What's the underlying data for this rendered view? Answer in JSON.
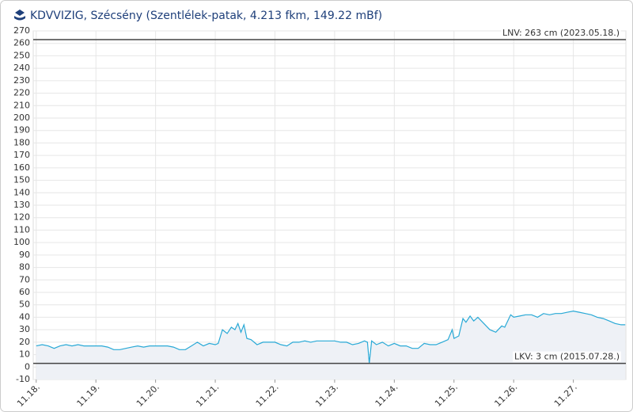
{
  "chart_data": {
    "type": "line",
    "title": "KDVVIZIG, Szécsény (Szentlélek-patak, 4.213 fkm, 149.22 mBf)",
    "x": [
      18.0,
      18.1,
      18.2,
      18.3,
      18.4,
      18.5,
      18.6,
      18.7,
      18.8,
      18.9,
      19.0,
      19.1,
      19.2,
      19.3,
      19.4,
      19.5,
      19.6,
      19.7,
      19.8,
      19.9,
      20.0,
      20.1,
      20.2,
      20.3,
      20.4,
      20.5,
      20.6,
      20.7,
      20.8,
      20.9,
      21.0,
      21.05,
      21.12,
      21.2,
      21.27,
      21.33,
      21.38,
      21.43,
      21.48,
      21.53,
      21.6,
      21.7,
      21.8,
      21.9,
      22.0,
      22.1,
      22.2,
      22.3,
      22.4,
      22.5,
      22.6,
      22.7,
      22.8,
      22.9,
      23.0,
      23.1,
      23.2,
      23.3,
      23.4,
      23.5,
      23.55,
      23.58,
      23.62,
      23.7,
      23.8,
      23.9,
      24.0,
      24.1,
      24.2,
      24.3,
      24.4,
      24.5,
      24.6,
      24.7,
      24.8,
      24.9,
      24.97,
      25.0,
      25.08,
      25.15,
      25.2,
      25.27,
      25.33,
      25.4,
      25.5,
      25.6,
      25.7,
      25.8,
      25.85,
      25.95,
      26.0,
      26.1,
      26.2,
      26.3,
      26.4,
      26.5,
      26.6,
      26.7,
      26.8,
      26.9,
      27.0,
      27.1,
      27.2,
      27.3,
      27.4,
      27.5,
      27.6,
      27.7,
      27.8,
      27.87
    ],
    "values": [
      17,
      18,
      17,
      15,
      17,
      18,
      17,
      18,
      17,
      17,
      17,
      17,
      16,
      14,
      14,
      15,
      16,
      17,
      16,
      17,
      17,
      17,
      17,
      16,
      14,
      14,
      17,
      20,
      17,
      19,
      18,
      19,
      30,
      27,
      32,
      30,
      35,
      28,
      34,
      23,
      22,
      18,
      20,
      20,
      20,
      18,
      17,
      20,
      20,
      21,
      20,
      21,
      21,
      21,
      21,
      20,
      20,
      18,
      19,
      21,
      20,
      3,
      21,
      18,
      20,
      17,
      19,
      17,
      17,
      15,
      15,
      19,
      18,
      18,
      20,
      22,
      30,
      23,
      25,
      39,
      36,
      41,
      37,
      40,
      35,
      30,
      28,
      33,
      32,
      42,
      40,
      41,
      42,
      42,
      40,
      43,
      42,
      43,
      43,
      44,
      45,
      44,
      43,
      42,
      40,
      39,
      37,
      35,
      34,
      34
    ],
    "color": "#29a9d6",
    "xlim": [
      17.95,
      27.88
    ],
    "xticks": [
      {
        "value": 18,
        "label": "11.18."
      },
      {
        "value": 19,
        "label": "11.19."
      },
      {
        "value": 20,
        "label": "11.20."
      },
      {
        "value": 21,
        "label": "11.21."
      },
      {
        "value": 22,
        "label": "11.22."
      },
      {
        "value": 23,
        "label": "11.23."
      },
      {
        "value": 24,
        "label": "11.24."
      },
      {
        "value": 25,
        "label": "11.25."
      },
      {
        "value": 26,
        "label": "11.26."
      },
      {
        "value": 27,
        "label": "11.27."
      }
    ],
    "ylim": [
      -10,
      270
    ],
    "yticks": [
      -10,
      0,
      10,
      20,
      30,
      40,
      50,
      60,
      70,
      80,
      90,
      100,
      110,
      120,
      130,
      140,
      150,
      160,
      170,
      180,
      190,
      200,
      210,
      220,
      230,
      240,
      250,
      260,
      270
    ],
    "grid": true,
    "annotations": [
      {
        "value": 263,
        "label": "LNV: 263 cm (2023.05.18.)"
      },
      {
        "value": 3,
        "label": "LKV: 3 cm (2015.07.28.)"
      }
    ]
  }
}
